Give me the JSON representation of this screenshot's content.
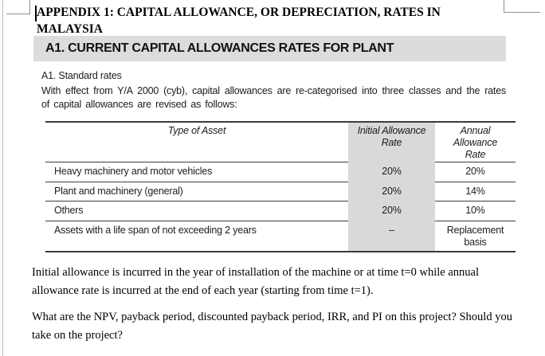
{
  "page": {
    "heading": "APPENDIX 1: CAPITAL ALLOWANCE, OR DEPRECIATION, RATES IN MALAYSIA",
    "section_banner": "A1. CURRENT CAPITAL ALLOWANCES RATES FOR PLANT",
    "subheading": "A1. Standard rates",
    "intro_paragraph": "With effect from Y/A 2000 (cyb), capital allowances are re-categorised into three classes and the rates of capital allowances are revised as follows:",
    "note_paragraph": "Initial allowance is incurred in the year of installation of the machine or at time t=0 while annual allowance rate is incurred at the end of each year (starting from time t=1).",
    "question_paragraph": "What are the NPV, payback period, discounted payback period, IRR, and PI on this project? Should you take on the project?"
  },
  "table": {
    "columns": [
      "Type of Asset",
      "Initial Allowance Rate",
      "Annual Allowance Rate"
    ],
    "rows": [
      {
        "asset": "Heavy machinery and motor vehicles",
        "initial": "20%",
        "annual": "20%"
      },
      {
        "asset": "Plant and machinery (general)",
        "initial": "20%",
        "annual": "14%"
      },
      {
        "asset": "Others",
        "initial": "20%",
        "annual": "10%"
      },
      {
        "asset": "Assets with a life span of not exceeding 2 years",
        "initial": "–",
        "annual": "Replacement basis"
      }
    ]
  },
  "colors": {
    "banner_bg": "#dcdcdc",
    "shaded_column_bg": "#d9d9d9",
    "table_line": "#3c3c3c",
    "text": "#1c1c1c"
  }
}
